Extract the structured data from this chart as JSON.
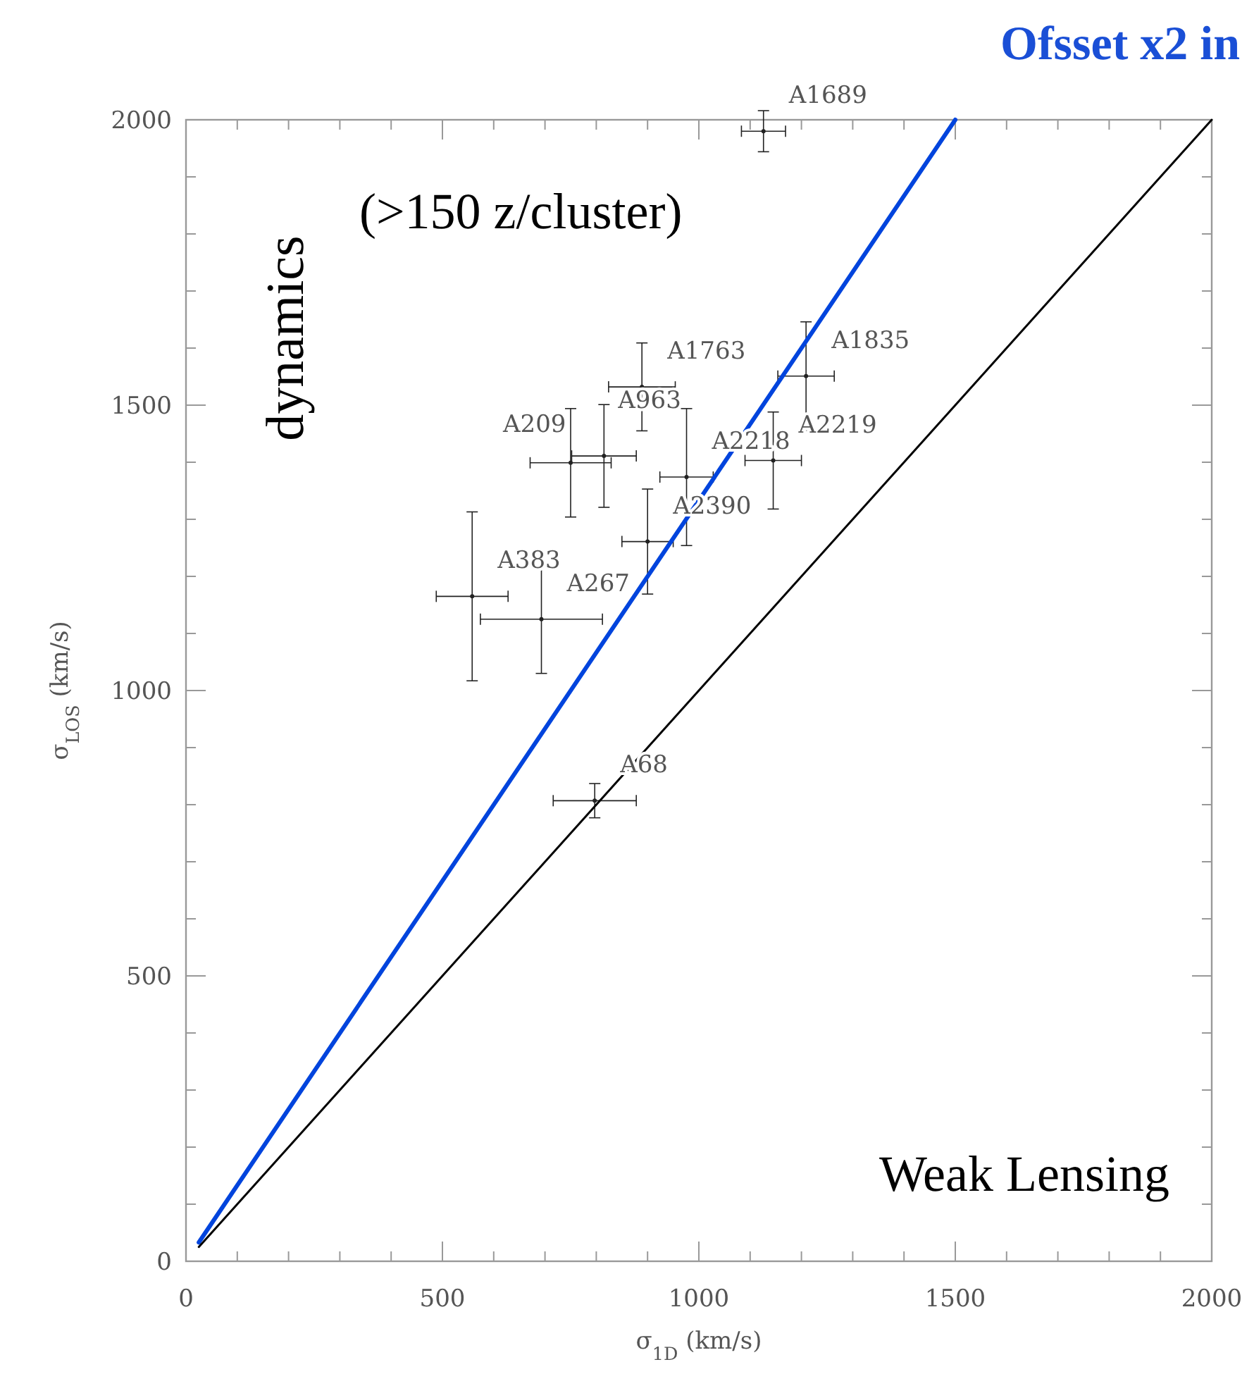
{
  "chart_data": {
    "type": "scatter",
    "title": "Ofsset x2 in",
    "xlabel": "σ$_{1D}$ (km/s)",
    "ylabel": "σ$_{LOS}$ (km/s)",
    "xlim": [
      0,
      2000
    ],
    "ylim": [
      0,
      2000
    ],
    "xticks": [
      0,
      {
        "value": 100,
        "label": null
      },
      {
        "value": 200,
        "label": null
      },
      {
        "value": 300,
        "label": null
      },
      {
        "value": 400,
        "label": null
      },
      500,
      {
        "value": 600,
        "label": null
      },
      {
        "value": 700,
        "label": null
      },
      {
        "value": 800,
        "label": null
      },
      {
        "value": 900,
        "label": null
      },
      1000,
      {
        "value": 1100,
        "label": null
      },
      {
        "value": 1200,
        "label": null
      },
      {
        "value": 1300,
        "label": null
      },
      {
        "value": 1400,
        "label": null
      },
      1500,
      {
        "value": 1600,
        "label": null
      },
      {
        "value": 1700,
        "label": null
      },
      {
        "value": 1800,
        "label": null
      },
      {
        "value": 1900,
        "label": null
      },
      2000
    ],
    "yticks": [
      0,
      {
        "value": 100,
        "label": null
      },
      {
        "value": 200,
        "label": null
      },
      {
        "value": 300,
        "label": null
      },
      {
        "value": 400,
        "label": null
      },
      500,
      {
        "value": 600,
        "label": null
      },
      {
        "value": 700,
        "label": null
      },
      {
        "value": 800,
        "label": null
      },
      {
        "value": 900,
        "label": null
      },
      1000,
      {
        "value": 1100,
        "label": null
      },
      {
        "value": 1200,
        "label": null
      },
      {
        "value": 1300,
        "label": null
      },
      {
        "value": 1400,
        "label": null
      },
      1500,
      {
        "value": 1600,
        "label": null
      },
      {
        "value": 1700,
        "label": null
      },
      {
        "value": 1800,
        "label": null
      },
      {
        "value": 1900,
        "label": null
      },
      2000
    ],
    "grid": false,
    "series": [
      {
        "color": "#222222",
        "x": [
          1126,
          889,
          1209,
          750,
          815,
          976,
          1145,
          900,
          558,
          693,
          797
        ],
        "values": [
          1980,
          1532,
          1551,
          1399,
          1411,
          1374,
          1403,
          1261,
          1165,
          1125,
          807
        ],
        "xerrors": [
          43,
          65,
          55,
          79,
          63,
          52,
          55,
          50,
          70,
          119,
          81
        ],
        "errors": [
          36,
          77,
          95,
          95,
          90,
          120,
          85,
          92,
          148,
          95,
          30
        ]
      },
      {
        "type": "line",
        "color": "#0044dd",
        "x": [
          25,
          1500
        ],
        "values": [
          33,
          2000
        ]
      },
      {
        "type": "line",
        "color": "#000000",
        "x": [
          25,
          2000
        ],
        "values": [
          25,
          2000
        ]
      }
    ],
    "line_style": "solid",
    "annotations": [
      {
        "text": "A1689",
        "x": 1126,
        "y": 1980
      },
      {
        "text": "A1763",
        "x": 889,
        "y": 1532
      },
      {
        "text": "A1835",
        "x": 1209,
        "y": 1551
      },
      {
        "text": "A209",
        "x": 750,
        "y": 1399
      },
      {
        "text": "A963",
        "x": 815,
        "y": 1411
      },
      {
        "text": "A2218",
        "x": 976,
        "y": 1374
      },
      {
        "text": "A2219",
        "x": 1145,
        "y": 1403
      },
      {
        "text": "A2390",
        "x": 900,
        "y": 1261
      },
      {
        "text": "A383",
        "x": 558,
        "y": 1165
      },
      {
        "text": "A267",
        "x": 693,
        "y": 1125
      },
      {
        "text": "A68",
        "x": 797,
        "y": 807
      },
      "dynamics",
      "(>150 z/cluster)",
      "Weak Lensing"
    ]
  }
}
